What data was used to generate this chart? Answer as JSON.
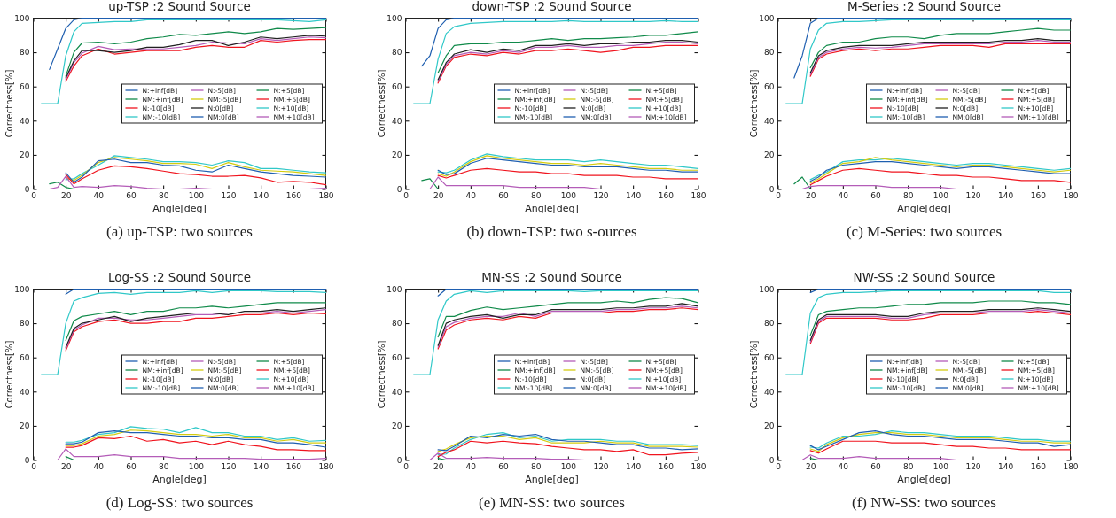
{
  "chart_data": [
    {
      "type": "line",
      "title": "up-TSP :2 Sound Source",
      "xlabel": "Angle[deg]",
      "ylabel": "Correctness[%]",
      "annotations": [
        "(a)  up-TSP: two sources"
      ],
      "xlim": [
        0,
        180
      ],
      "ylim": [
        0,
        100
      ],
      "xticks": [
        0,
        20,
        40,
        60,
        80,
        100,
        120,
        140,
        160,
        180
      ],
      "yticks": [
        0,
        20,
        40,
        60,
        80,
        100
      ],
      "grid": false,
      "legend": "right",
      "line_style": "solid",
      "x": [
        5,
        10,
        15,
        20,
        25,
        30,
        40,
        50,
        60,
        70,
        80,
        90,
        100,
        110,
        120,
        130,
        140,
        150,
        160,
        170,
        180
      ],
      "series": [
        {
          "name": "N:+inf[dB]",
          "color": "#1f5fb0",
          "values": [
            null,
            70,
            82,
            94,
            99,
            100,
            100,
            100,
            100,
            100,
            100,
            100,
            100,
            100,
            100,
            100,
            100,
            100,
            100,
            100,
            100
          ]
        },
        {
          "name": "NM:+inf[dB]",
          "color": "#108a4a",
          "values": [
            null,
            3,
            4,
            1,
            0,
            null,
            null,
            null,
            null,
            null,
            null,
            null,
            null,
            null,
            null,
            null,
            null,
            null,
            null,
            null,
            null
          ]
        },
        {
          "name": "N:-10[dB]",
          "color": "#f0141e",
          "values": [
            null,
            null,
            null,
            63,
            72,
            78,
            82,
            79,
            80,
            81,
            81,
            81,
            83,
            84,
            83,
            83,
            87,
            86,
            87,
            87.5,
            87.5
          ]
        },
        {
          "name": "NM:-10[dB]",
          "color": "#30c8c8",
          "values": [
            null,
            null,
            null,
            5.5,
            6,
            9,
            14,
            19.5,
            18.5,
            17.5,
            16,
            16,
            15.5,
            14,
            16.5,
            15.5,
            12,
            12,
            11,
            10,
            9.5
          ]
        },
        {
          "name": "N:-5[dB]",
          "color": "#b45cb8",
          "values": [
            null,
            null,
            null,
            64,
            74,
            79.5,
            83.5,
            81.5,
            82,
            82,
            82,
            83,
            84,
            86,
            85.5,
            85,
            88,
            87,
            88,
            89,
            88.5
          ]
        },
        {
          "name": "NM:-5[dB]",
          "color": "#d4cc10",
          "values": [
            null,
            null,
            null,
            6.5,
            5,
            8,
            15.5,
            18.5,
            17.5,
            16.5,
            15,
            15,
            14.5,
            12,
            15.5,
            13,
            11,
            10.5,
            10,
            9,
            8
          ]
        },
        {
          "name": "N:0[dB]",
          "color": "#202020",
          "values": [
            null,
            null,
            null,
            65,
            75,
            81,
            81,
            80,
            81,
            83,
            83,
            84.5,
            87,
            87,
            84,
            86,
            89,
            88,
            89,
            90,
            89.5
          ]
        },
        {
          "name": "NM:0[dB]",
          "color": "#1f5fb0",
          "values": [
            null,
            null,
            null,
            9.5,
            4,
            7,
            16.5,
            17.5,
            15.5,
            15.5,
            14,
            13.5,
            11,
            10,
            14,
            12,
            10,
            9,
            8,
            7.5,
            7
          ]
        },
        {
          "name": "N:+5[dB]",
          "color": "#108a4a",
          "values": [
            null,
            null,
            null,
            66,
            80,
            85.5,
            86,
            85,
            86,
            88,
            89,
            90.5,
            90,
            91,
            92,
            91,
            92,
            94,
            93.5,
            94,
            94.5
          ]
        },
        {
          "name": "NM:+5[dB]",
          "color": "#f0141e",
          "values": [
            null,
            null,
            null,
            8.5,
            3,
            6,
            11,
            13.5,
            13,
            12,
            10.5,
            9,
            8.5,
            7.5,
            7.5,
            8,
            6.5,
            4,
            4.5,
            4,
            2.5
          ]
        },
        {
          "name": "N:+10[dB]",
          "color": "#30c8c8",
          "values": [
            50,
            50,
            50,
            78,
            92,
            97,
            97.5,
            98,
            98,
            99,
            99,
            99,
            99,
            99,
            99,
            99,
            99,
            99,
            98.5,
            98,
            99
          ]
        },
        {
          "name": "NM:+10[dB]",
          "color": "#b45cb8",
          "values": [
            0,
            0,
            1,
            7.5,
            1,
            1.5,
            1,
            2,
            1.5,
            0.5,
            0,
            0,
            0.5,
            0,
            0,
            0,
            0,
            0,
            0,
            0,
            0.5
          ]
        }
      ]
    },
    {
      "type": "line",
      "title": "down-TSP :2 Sound Source",
      "xlabel": "Angle[deg]",
      "ylabel": "Correctness[%]",
      "annotations": [
        "(b)  down-TSP: two s-ources"
      ],
      "xlim": [
        0,
        180
      ],
      "ylim": [
        0,
        100
      ],
      "xticks": [
        0,
        20,
        40,
        60,
        80,
        100,
        120,
        140,
        160,
        180
      ],
      "yticks": [
        0,
        20,
        40,
        60,
        80,
        100
      ],
      "grid": false,
      "legend": "right",
      "line_style": "solid",
      "x": [
        5,
        10,
        15,
        20,
        25,
        30,
        40,
        50,
        60,
        70,
        80,
        90,
        100,
        110,
        120,
        130,
        140,
        150,
        160,
        170,
        180
      ],
      "series": [
        {
          "name": "N:+inf[dB]",
          "color": "#1f5fb0",
          "values": [
            null,
            72,
            78,
            94,
            99,
            100,
            100,
            100,
            100,
            100,
            100,
            100,
            100,
            100,
            100,
            100,
            100,
            100,
            100,
            100,
            100
          ]
        },
        {
          "name": "NM:+inf[dB]",
          "color": "#108a4a",
          "values": [
            null,
            5,
            6,
            0,
            0,
            null,
            null,
            null,
            null,
            null,
            null,
            null,
            null,
            null,
            null,
            null,
            null,
            null,
            null,
            null,
            null
          ]
        },
        {
          "name": "N:-10[dB]",
          "color": "#f0141e",
          "values": [
            null,
            null,
            null,
            62,
            72,
            77,
            79,
            78,
            80,
            79,
            81,
            81,
            82,
            81,
            80,
            81,
            83,
            83,
            84,
            84,
            84
          ]
        },
        {
          "name": "NM:-10[dB]",
          "color": "#30c8c8",
          "values": [
            null,
            null,
            null,
            10,
            9.5,
            11,
            17,
            20.5,
            19,
            18,
            17,
            17,
            17,
            16,
            17,
            16,
            15,
            14,
            14,
            13,
            12
          ]
        },
        {
          "name": "N:-5[dB]",
          "color": "#b45cb8",
          "values": [
            null,
            null,
            null,
            63,
            73,
            78,
            80,
            79,
            81,
            80,
            83,
            83,
            84,
            83,
            83,
            84,
            84,
            85,
            86,
            86,
            85
          ]
        },
        {
          "name": "NM:-5[dB]",
          "color": "#d4cc10",
          "values": [
            null,
            null,
            null,
            9,
            7.5,
            10,
            16,
            19.5,
            18,
            17,
            16,
            15,
            15,
            14,
            15,
            14,
            13,
            12,
            12,
            11,
            11
          ]
        },
        {
          "name": "N:0[dB]",
          "color": "#202020",
          "values": [
            null,
            null,
            null,
            64,
            74,
            79,
            81.5,
            80,
            82,
            81,
            84,
            84,
            85,
            84,
            85,
            85,
            86,
            86,
            87,
            87,
            86
          ]
        },
        {
          "name": "NM:0[dB]",
          "color": "#1f5fb0",
          "values": [
            null,
            null,
            null,
            11,
            8.5,
            9,
            15,
            18,
            17,
            16,
            15,
            14,
            14,
            13,
            13,
            13,
            12,
            11,
            11,
            10,
            10
          ]
        },
        {
          "name": "N:+5[dB]",
          "color": "#108a4a",
          "values": [
            null,
            null,
            null,
            68,
            78,
            84,
            85,
            85,
            86,
            86,
            87,
            88,
            87,
            88,
            88,
            88.5,
            89,
            90,
            90,
            91,
            92
          ]
        },
        {
          "name": "NM:+5[dB]",
          "color": "#f0141e",
          "values": [
            null,
            null,
            null,
            8,
            6.5,
            8,
            11,
            12,
            11,
            10,
            10,
            9,
            9,
            8,
            8,
            8,
            7,
            7,
            6,
            6,
            6
          ]
        },
        {
          "name": "N:+10[dB]",
          "color": "#30c8c8",
          "values": [
            50,
            50,
            50,
            76,
            91,
            95,
            97,
            97.5,
            98,
            98,
            98,
            98,
            98.5,
            98,
            98,
            98,
            98,
            98,
            98.5,
            98,
            98
          ]
        },
        {
          "name": "NM:+10[dB]",
          "color": "#b45cb8",
          "values": [
            0,
            0,
            0,
            7,
            2,
            2,
            2,
            2,
            2,
            1,
            1,
            1,
            1,
            1,
            0,
            0,
            0,
            0,
            0,
            0,
            0
          ]
        }
      ]
    },
    {
      "type": "line",
      "title": "M-Series :2 Sound Source",
      "xlabel": "Angle[deg]",
      "ylabel": "Correctness[%]",
      "annotations": [
        "(c)  M-Series: two sources"
      ],
      "xlim": [
        0,
        180
      ],
      "ylim": [
        0,
        100
      ],
      "xticks": [
        0,
        20,
        40,
        60,
        80,
        100,
        120,
        140,
        160,
        180
      ],
      "yticks": [
        0,
        20,
        40,
        60,
        80,
        100
      ],
      "grid": false,
      "legend": "right",
      "line_style": "solid",
      "x": [
        5,
        10,
        15,
        20,
        25,
        30,
        40,
        50,
        60,
        70,
        80,
        90,
        100,
        110,
        120,
        130,
        140,
        150,
        160,
        170,
        180
      ],
      "series": [
        {
          "name": "N:+inf[dB]",
          "color": "#1f5fb0",
          "values": [
            null,
            65,
            78,
            97,
            100,
            100,
            100,
            100,
            100,
            100,
            100,
            100,
            100,
            100,
            100,
            100,
            100,
            100,
            100,
            100,
            100
          ]
        },
        {
          "name": "NM:+inf[dB]",
          "color": "#108a4a",
          "values": [
            null,
            3,
            7,
            0,
            0,
            null,
            null,
            null,
            null,
            null,
            null,
            null,
            null,
            null,
            null,
            null,
            null,
            null,
            null,
            null,
            null
          ]
        },
        {
          "name": "N:-10[dB]",
          "color": "#f0141e",
          "values": [
            null,
            null,
            null,
            66,
            76,
            79,
            81,
            82,
            81,
            82,
            82,
            83,
            84,
            84,
            84,
            83,
            85,
            85,
            85,
            85,
            85
          ]
        },
        {
          "name": "NM:-10[dB]",
          "color": "#30c8c8",
          "values": [
            null,
            null,
            null,
            5.5,
            8,
            10,
            16,
            17,
            17,
            18,
            17,
            16,
            15,
            14,
            15,
            15,
            14,
            13,
            12,
            11,
            12
          ]
        },
        {
          "name": "N:-5[dB]",
          "color": "#b45cb8",
          "values": [
            null,
            null,
            null,
            67,
            77,
            80,
            82,
            83,
            82.5,
            83,
            84,
            85,
            85,
            85,
            85,
            85,
            86,
            86,
            87,
            86,
            86
          ]
        },
        {
          "name": "NM:-5[dB]",
          "color": "#d4cc10",
          "values": [
            null,
            null,
            null,
            3.5,
            6,
            9,
            15,
            16,
            18.5,
            17,
            16,
            15,
            14,
            13,
            14,
            14,
            13,
            12,
            11,
            10,
            11
          ]
        },
        {
          "name": "N:0[dB]",
          "color": "#202020",
          "values": [
            null,
            null,
            null,
            68,
            78,
            81,
            83,
            84,
            84,
            84,
            85,
            86,
            86,
            86,
            86,
            86,
            87,
            87,
            88,
            87,
            87
          ]
        },
        {
          "name": "NM:0[dB]",
          "color": "#1f5fb0",
          "values": [
            null,
            null,
            null,
            4.5,
            7,
            11,
            14,
            15,
            16,
            16,
            15,
            14,
            13,
            12,
            13,
            13,
            12,
            11,
            10,
            9,
            9
          ]
        },
        {
          "name": "N:+5[dB]",
          "color": "#108a4a",
          "values": [
            null,
            null,
            null,
            71,
            80,
            84,
            86,
            86,
            88,
            89,
            89,
            88,
            90,
            91,
            91,
            91,
            92,
            93,
            94,
            93,
            93
          ]
        },
        {
          "name": "NM:+5[dB]",
          "color": "#f0141e",
          "values": [
            null,
            null,
            null,
            2.5,
            5,
            7.5,
            11,
            12,
            11,
            10,
            10,
            9,
            8,
            8,
            7,
            7,
            6,
            5,
            5,
            5,
            4
          ]
        },
        {
          "name": "N:+10[dB]",
          "color": "#30c8c8",
          "values": [
            50,
            50,
            50,
            82,
            93,
            97,
            98,
            98,
            98.5,
            99,
            99,
            99,
            99,
            99,
            99,
            99,
            99,
            99,
            99,
            99,
            99
          ]
        },
        {
          "name": "NM:+10[dB]",
          "color": "#b45cb8",
          "values": [
            0,
            0,
            0,
            1.5,
            2,
            2,
            2,
            2,
            2,
            1,
            1,
            1,
            1,
            0,
            0,
            0,
            0,
            0,
            0,
            0,
            0
          ]
        }
      ]
    },
    {
      "type": "line",
      "title": "Log-SS :2 Sound Source",
      "xlabel": "Angle[deg]",
      "ylabel": "Correctness[%]",
      "annotations": [
        "(d)  Log-SS: two sources"
      ],
      "xlim": [
        0,
        180
      ],
      "ylim": [
        0,
        100
      ],
      "xticks": [
        0,
        20,
        40,
        60,
        80,
        100,
        120,
        140,
        160,
        180
      ],
      "yticks": [
        0,
        20,
        40,
        60,
        80,
        100
      ],
      "grid": false,
      "legend": "right",
      "line_style": "solid",
      "x": [
        5,
        10,
        15,
        20,
        25,
        30,
        40,
        50,
        60,
        70,
        80,
        90,
        100,
        110,
        120,
        130,
        140,
        150,
        160,
        170,
        180
      ],
      "series": [
        {
          "name": "N:+inf[dB]",
          "color": "#1f5fb0",
          "values": [
            null,
            null,
            null,
            97,
            100,
            100,
            100,
            100,
            100,
            100,
            100,
            100,
            100,
            100,
            100,
            100,
            100,
            100,
            100,
            100,
            100
          ]
        },
        {
          "name": "NM:+inf[dB]",
          "color": "#108a4a",
          "values": [
            null,
            null,
            null,
            2,
            0,
            null,
            null,
            null,
            null,
            null,
            null,
            null,
            null,
            null,
            null,
            null,
            null,
            null,
            null,
            null,
            null
          ]
        },
        {
          "name": "N:-10[dB]",
          "color": "#f0141e",
          "values": [
            null,
            null,
            null,
            64,
            75,
            78,
            81,
            82,
            80,
            80,
            81,
            81,
            83,
            83,
            84,
            85,
            85,
            86,
            85,
            86,
            85.5
          ]
        },
        {
          "name": "NM:-10[dB]",
          "color": "#30c8c8",
          "values": [
            null,
            null,
            null,
            10.5,
            10.5,
            11.5,
            15,
            16,
            19.5,
            18.5,
            18,
            16,
            19,
            16,
            16,
            14,
            14,
            12,
            13,
            11,
            11.5
          ]
        },
        {
          "name": "N:-5[dB]",
          "color": "#b45cb8",
          "values": [
            null,
            null,
            null,
            65,
            76,
            79,
            83,
            83,
            82,
            82,
            83,
            84,
            85,
            85,
            86,
            86,
            86,
            87,
            86,
            87,
            88
          ]
        },
        {
          "name": "NM:-5[dB]",
          "color": "#d4cc10",
          "values": [
            null,
            null,
            null,
            8.5,
            8.5,
            9.5,
            14,
            15,
            17.5,
            17,
            16,
            15,
            15,
            14,
            15,
            13,
            13,
            11,
            12,
            10,
            10
          ]
        },
        {
          "name": "N:0[dB]",
          "color": "#202020",
          "values": [
            null,
            null,
            null,
            66,
            77,
            80,
            82,
            84,
            81,
            83,
            84,
            85,
            86,
            86,
            85,
            87,
            87,
            88,
            87,
            88,
            89
          ]
        },
        {
          "name": "NM:0[dB]",
          "color": "#1f5fb0",
          "values": [
            null,
            null,
            null,
            9.5,
            9.5,
            10.5,
            16,
            17,
            16,
            16,
            15,
            14,
            14,
            13,
            13,
            12,
            12,
            10,
            10,
            9,
            7.5
          ]
        },
        {
          "name": "N:+5[dB]",
          "color": "#108a4a",
          "values": [
            null,
            null,
            null,
            70,
            81.5,
            84,
            85.5,
            87,
            85,
            87,
            87,
            89,
            89,
            90,
            89,
            90,
            91,
            92,
            92,
            92,
            92
          ]
        },
        {
          "name": "NM:+5[dB]",
          "color": "#f0141e",
          "values": [
            null,
            null,
            null,
            7.5,
            7.5,
            8.5,
            13,
            12.5,
            14,
            11,
            12,
            10,
            11,
            9,
            11,
            9,
            8,
            6,
            6,
            5.5,
            5.5
          ]
        },
        {
          "name": "N:+10[dB]",
          "color": "#30c8c8",
          "values": [
            50,
            50,
            50,
            80,
            93,
            95,
            97.5,
            98,
            97,
            98,
            98,
            98,
            99,
            98,
            99,
            99,
            99,
            98.5,
            98.5,
            98.5,
            98
          ]
        },
        {
          "name": "NM:+10[dB]",
          "color": "#b45cb8",
          "values": [
            0,
            0,
            0,
            6.5,
            2,
            2,
            2,
            3,
            2,
            2,
            2,
            1,
            1,
            1,
            1,
            1,
            0.5,
            0.5,
            0.5,
            0.5,
            1
          ]
        }
      ]
    },
    {
      "type": "line",
      "title": "MN-SS :2 Sound Source",
      "xlabel": "Angle[deg]",
      "ylabel": "Correctness[%]",
      "annotations": [
        "(e)  MN-SS: two sources"
      ],
      "xlim": [
        0,
        180
      ],
      "ylim": [
        0,
        100
      ],
      "xticks": [
        0,
        20,
        40,
        60,
        80,
        100,
        120,
        140,
        160,
        180
      ],
      "yticks": [
        0,
        20,
        40,
        60,
        80,
        100
      ],
      "grid": false,
      "legend": "right",
      "line_style": "solid",
      "x": [
        5,
        10,
        15,
        20,
        25,
        30,
        40,
        50,
        60,
        70,
        80,
        90,
        100,
        110,
        120,
        130,
        140,
        150,
        160,
        170,
        180
      ],
      "series": [
        {
          "name": "N:+inf[dB]",
          "color": "#1f5fb0",
          "values": [
            null,
            null,
            null,
            96,
            100,
            100,
            100,
            100,
            100,
            100,
            100,
            100,
            100,
            100,
            100,
            100,
            100,
            100,
            100,
            100,
            100
          ]
        },
        {
          "name": "NM:+inf[dB]",
          "color": "#108a4a",
          "values": [
            null,
            null,
            null,
            1,
            0,
            null,
            null,
            null,
            null,
            null,
            null,
            null,
            null,
            null,
            null,
            null,
            null,
            null,
            null,
            null,
            null
          ]
        },
        {
          "name": "N:-10[dB]",
          "color": "#f0141e",
          "values": [
            null,
            null,
            null,
            65,
            76,
            79,
            82,
            83,
            82,
            84,
            83,
            86,
            86,
            86,
            86,
            87,
            87,
            88,
            88,
            89,
            88
          ]
        },
        {
          "name": "NM:-10[dB]",
          "color": "#30c8c8",
          "values": [
            null,
            null,
            null,
            3,
            3.5,
            7,
            12,
            15,
            16,
            13,
            14,
            11,
            12,
            12,
            12,
            11,
            11,
            9,
            9,
            9,
            8.5
          ]
        },
        {
          "name": "N:-5[dB]",
          "color": "#b45cb8",
          "values": [
            null,
            null,
            null,
            66,
            78,
            80.5,
            83,
            84,
            84,
            86,
            84,
            87,
            87,
            87,
            87,
            88,
            88,
            89,
            89,
            90,
            89
          ]
        },
        {
          "name": "NM:-5[dB]",
          "color": "#d4cc10",
          "values": [
            null,
            null,
            null,
            5,
            6.5,
            9,
            13,
            14,
            14,
            12,
            13,
            10,
            10,
            10,
            11,
            10,
            10,
            8,
            8,
            8,
            7.5
          ]
        },
        {
          "name": "N:0[dB]",
          "color": "#202020",
          "values": [
            null,
            null,
            null,
            67,
            80,
            82,
            84,
            85,
            83,
            85,
            85,
            88,
            88,
            88,
            88,
            89,
            89,
            90,
            90,
            91.5,
            90
          ]
        },
        {
          "name": "NM:0[dB]",
          "color": "#1f5fb0",
          "values": [
            null,
            null,
            null,
            6,
            5.5,
            8,
            14,
            13,
            15,
            14,
            15,
            12,
            11,
            11,
            10,
            9,
            9,
            7,
            7,
            6,
            6.5
          ]
        },
        {
          "name": "N:+5[dB]",
          "color": "#108a4a",
          "values": [
            null,
            null,
            null,
            72,
            84,
            84,
            87.5,
            89.5,
            88,
            89,
            90,
            91,
            92,
            92,
            92,
            93,
            92,
            94,
            95,
            94.5,
            92
          ]
        },
        {
          "name": "NM:+5[dB]",
          "color": "#f0141e",
          "values": [
            null,
            null,
            null,
            2,
            4.5,
            6,
            11,
            10,
            11,
            10,
            9.5,
            8,
            7,
            6,
            6,
            5,
            6,
            3,
            3,
            4,
            4.5
          ]
        },
        {
          "name": "N:+10[dB]",
          "color": "#30c8c8",
          "values": [
            50,
            50,
            50,
            82,
            93,
            97,
            99,
            98,
            99,
            99,
            99,
            99,
            99,
            98.5,
            99,
            99,
            99,
            99,
            99,
            99,
            99
          ]
        },
        {
          "name": "NM:+10[dB]",
          "color": "#b45cb8",
          "values": [
            0,
            0,
            0,
            4,
            1,
            1,
            1,
            1.5,
            1,
            1,
            1,
            0.5,
            0.5,
            0,
            0,
            0,
            0,
            0,
            0,
            0,
            0
          ]
        }
      ]
    },
    {
      "type": "line",
      "title": "NW-SS :2 Sound Source",
      "xlabel": "Angle[deg]",
      "ylabel": "Correctness[%]",
      "annotations": [
        "(f)  NW-SS: two sources"
      ],
      "xlim": [
        0,
        180
      ],
      "ylim": [
        0,
        100
      ],
      "xticks": [
        0,
        20,
        40,
        60,
        80,
        100,
        120,
        140,
        160,
        180
      ],
      "yticks": [
        0,
        20,
        40,
        60,
        80,
        100
      ],
      "grid": false,
      "legend": "right",
      "line_style": "solid",
      "x": [
        5,
        10,
        15,
        20,
        25,
        30,
        40,
        50,
        60,
        70,
        80,
        90,
        100,
        110,
        120,
        130,
        140,
        150,
        160,
        170,
        180
      ],
      "series": [
        {
          "name": "N:+inf[dB]",
          "color": "#1f5fb0",
          "values": [
            null,
            null,
            null,
            98,
            100,
            100,
            100,
            100,
            100,
            100,
            100,
            100,
            100,
            100,
            100,
            100,
            100,
            100,
            100,
            100,
            100
          ]
        },
        {
          "name": "NM:+inf[dB]",
          "color": "#108a4a",
          "values": [
            null,
            null,
            null,
            1,
            0,
            null,
            null,
            null,
            null,
            null,
            null,
            null,
            null,
            null,
            null,
            null,
            null,
            null,
            null,
            null,
            null
          ]
        },
        {
          "name": "N:-10[dB]",
          "color": "#f0141e",
          "values": [
            null,
            null,
            null,
            68,
            80,
            83,
            83,
            83,
            83,
            82,
            82,
            83,
            85,
            85,
            85,
            86,
            86,
            86,
            87,
            86,
            85
          ]
        },
        {
          "name": "NM:-10[dB]",
          "color": "#30c8c8",
          "values": [
            null,
            null,
            null,
            7.5,
            7,
            10,
            14,
            14,
            15,
            17,
            16,
            16,
            15,
            14,
            14,
            14,
            13,
            12,
            12,
            11,
            11
          ]
        },
        {
          "name": "N:-5[dB]",
          "color": "#b45cb8",
          "values": [
            null,
            null,
            null,
            69,
            81,
            84,
            84,
            84,
            84,
            83,
            83,
            85,
            86,
            86,
            86,
            87,
            87,
            87,
            88,
            87,
            86
          ]
        },
        {
          "name": "NM:-5[dB]",
          "color": "#d4cc10",
          "values": [
            null,
            null,
            null,
            6.5,
            5,
            9,
            13,
            15,
            16,
            16,
            15,
            15,
            14,
            13,
            13,
            13,
            12,
            11,
            11,
            10,
            10
          ]
        },
        {
          "name": "N:0[dB]",
          "color": "#202020",
          "values": [
            null,
            null,
            null,
            70,
            82,
            85,
            85,
            85,
            85,
            84,
            84,
            86,
            87,
            87,
            87,
            88,
            88,
            88,
            89,
            88,
            87
          ]
        },
        {
          "name": "NM:0[dB]",
          "color": "#1f5fb0",
          "values": [
            null,
            null,
            null,
            8.5,
            6,
            8,
            12,
            16,
            17,
            15,
            14,
            14,
            13,
            12,
            12,
            12,
            11,
            10,
            10,
            8,
            9
          ]
        },
        {
          "name": "N:+5[dB]",
          "color": "#108a4a",
          "values": [
            null,
            null,
            null,
            73,
            85,
            87,
            88,
            89,
            89,
            90,
            91,
            91,
            92,
            92,
            92,
            93,
            93,
            93,
            92,
            92,
            91
          ]
        },
        {
          "name": "NM:+5[dB]",
          "color": "#f0141e",
          "values": [
            null,
            null,
            null,
            5.5,
            4,
            6.5,
            11,
            11,
            11,
            10,
            10,
            10,
            9,
            8,
            8,
            7,
            7,
            6,
            6,
            6,
            6
          ]
        },
        {
          "name": "N:+10[dB]",
          "color": "#30c8c8",
          "values": [
            50,
            50,
            50,
            86,
            95,
            97,
            98,
            98,
            98.5,
            99,
            99,
            99,
            99,
            99,
            99,
            99,
            99,
            99,
            99,
            98,
            98
          ]
        },
        {
          "name": "NM:+10[dB]",
          "color": "#b45cb8",
          "values": [
            0,
            0,
            0,
            3,
            1,
            1,
            1,
            2,
            1,
            1,
            1,
            1,
            1,
            0,
            0,
            0,
            0,
            0,
            0,
            0,
            0
          ]
        }
      ]
    }
  ]
}
